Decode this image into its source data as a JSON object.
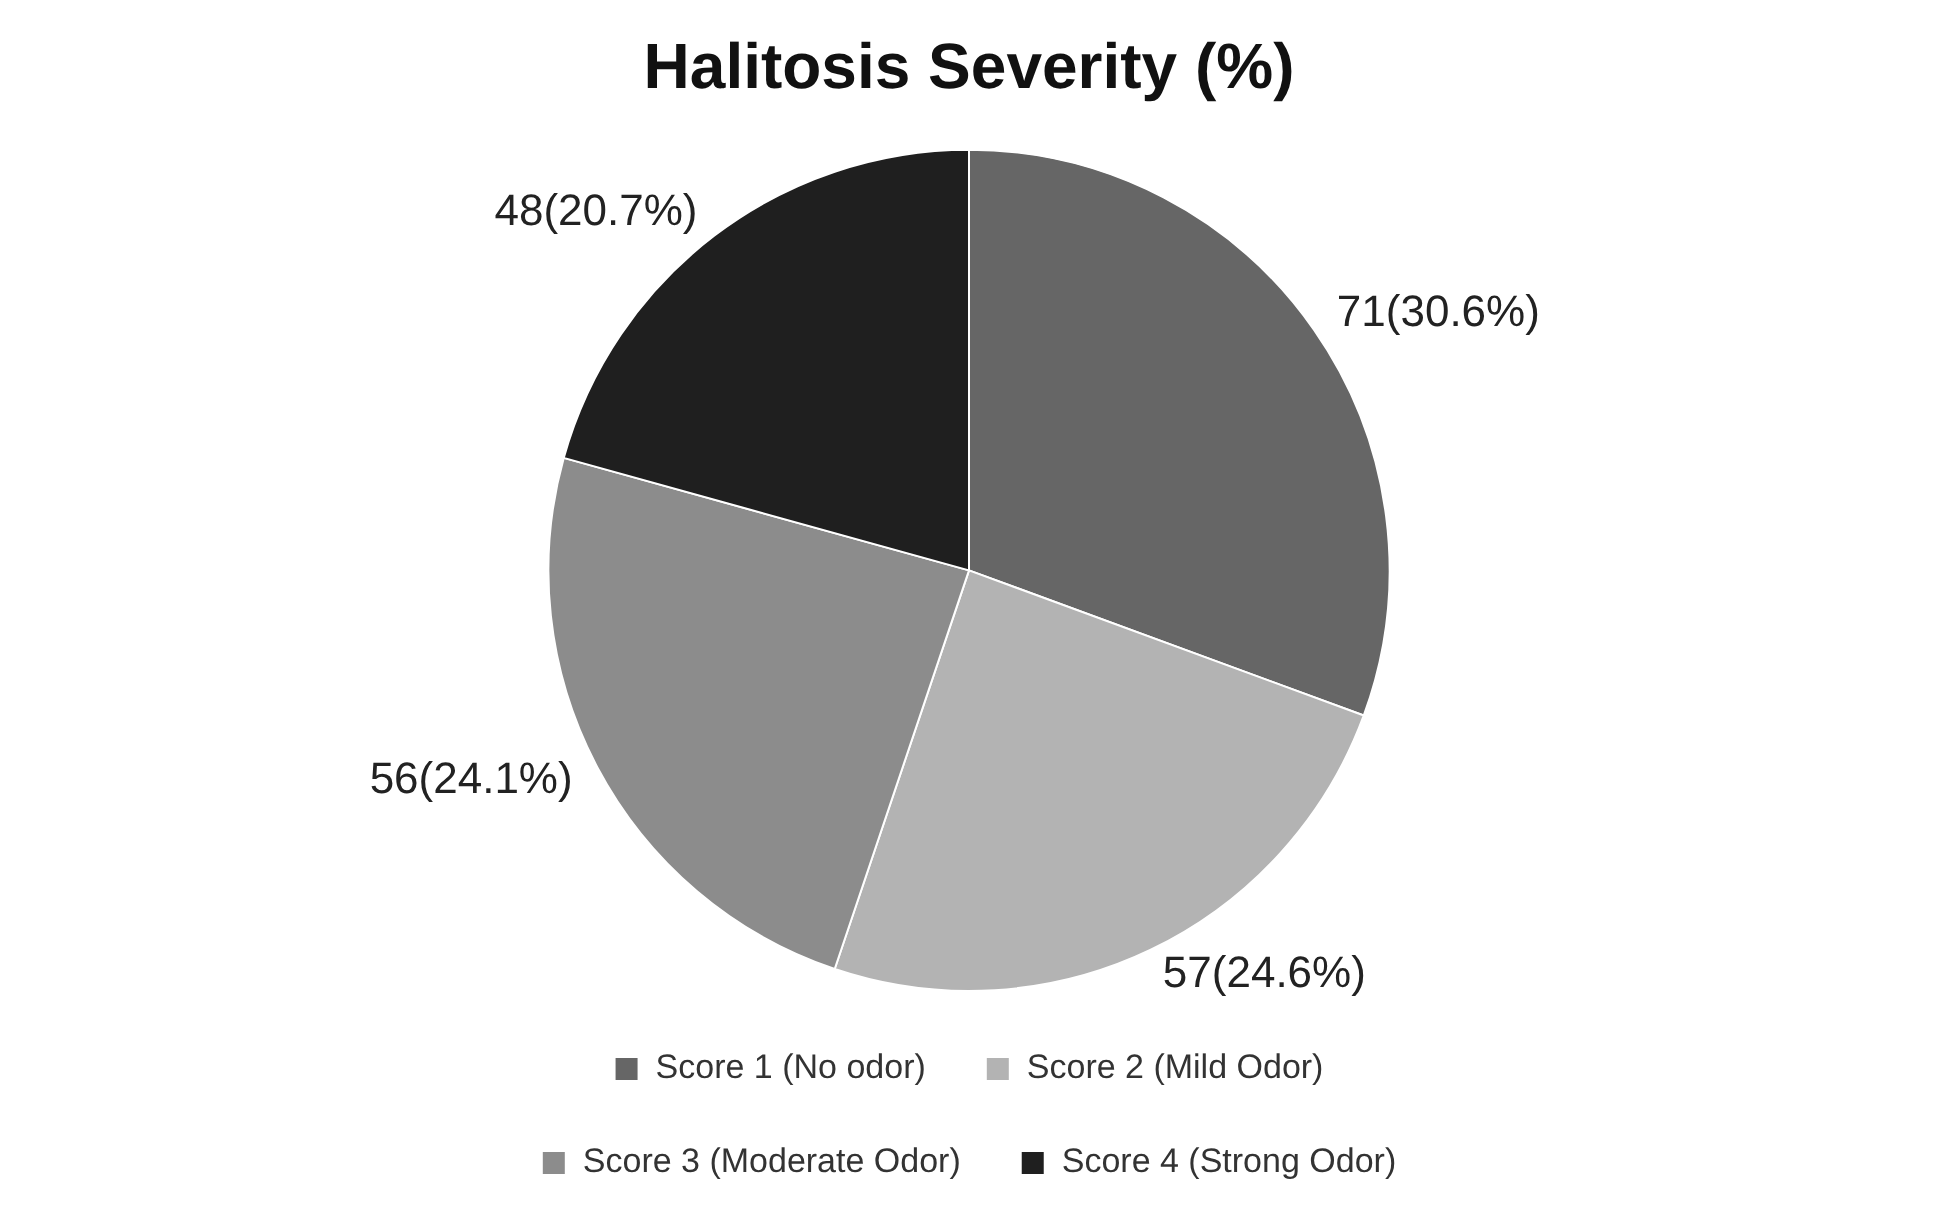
{
  "chart_data": {
    "type": "pie",
    "title": "Halitosis Severity (%)",
    "categories": [
      "Score 1 (No odor)",
      "Score 2 (Mild Odor)",
      "Score 3 (Moderate Odor)",
      "Score 4 (Strong Odor)"
    ],
    "values": [
      71,
      57,
      56,
      48
    ],
    "value_labels": [
      "71(30.6%)",
      "57(24.6%)",
      "56(24.1%)",
      "48(20.7%)"
    ],
    "colors": [
      "#666666",
      "#b3b3b3",
      "#8c8c8c",
      "#1f1f1f"
    ],
    "legend": "bottom"
  }
}
